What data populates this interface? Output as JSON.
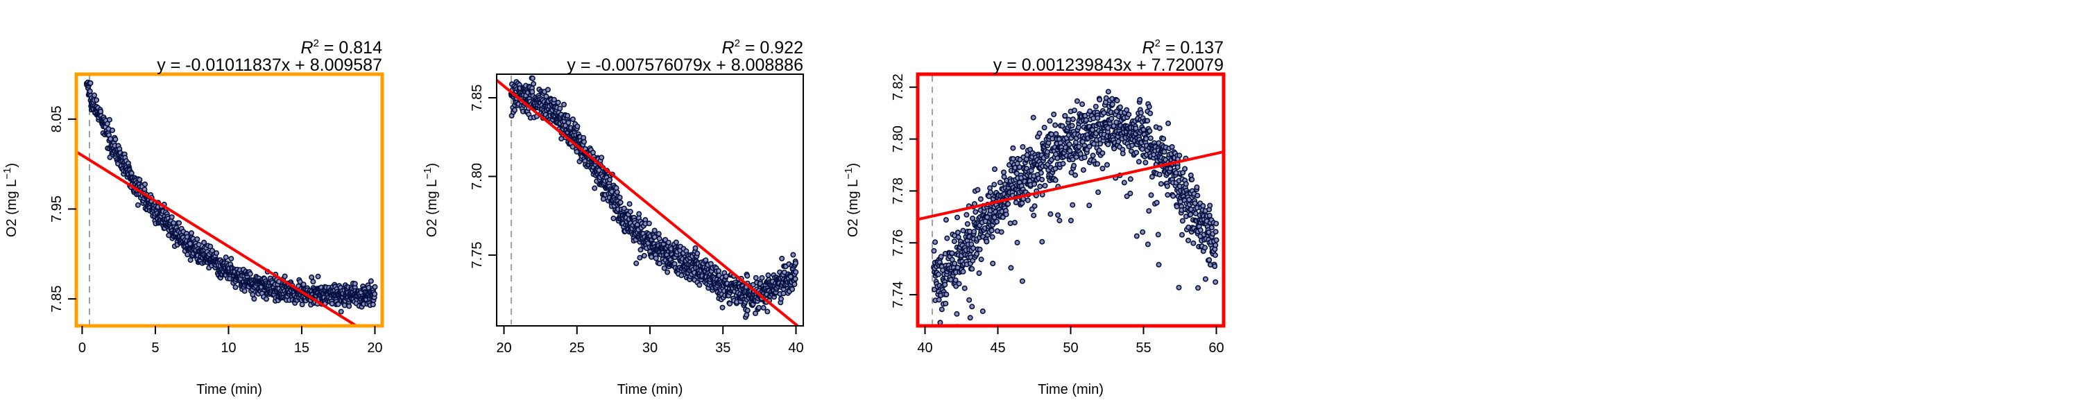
{
  "chart_data": [
    {
      "type": "scatter",
      "xlabel": "Time (min)",
      "ylabel_main": "O2 (mg L",
      "ylabel_sup": "−1",
      "ylabel_close": ")",
      "r2_label": "R",
      "r2_sup": "2",
      "r2_value": " = 0.814",
      "equation": "y = -0.01011837x + 8.009587",
      "xlim": [
        -0.4,
        20.5
      ],
      "ylim": [
        7.82,
        8.1
      ],
      "x_ticks": [
        0,
        5,
        10,
        15,
        20
      ],
      "y_ticks": [
        7.85,
        7.95,
        8.05
      ],
      "x_tick_labels": [
        "0",
        "5",
        "10",
        "15",
        "20"
      ],
      "y_tick_labels": [
        "7.85",
        "7.95",
        "8.05"
      ],
      "fit": {
        "slope": -0.01011837,
        "intercept": 8.009587
      },
      "subset_start": 0.5,
      "frame_color": "#ff9e00",
      "point_color": "#001040",
      "fit_color": "#ff0000",
      "curve": [
        [
          0.3,
          8.09
        ],
        [
          1,
          8.06
        ],
        [
          2,
          8.025
        ],
        [
          3,
          7.995
        ],
        [
          4,
          7.97
        ],
        [
          5,
          7.948
        ],
        [
          6,
          7.93
        ],
        [
          7,
          7.915
        ],
        [
          8,
          7.902
        ],
        [
          9,
          7.89
        ],
        [
          10,
          7.88
        ],
        [
          11,
          7.872
        ],
        [
          12,
          7.866
        ],
        [
          13,
          7.861
        ],
        [
          15,
          7.857
        ],
        [
          17,
          7.855
        ],
        [
          20,
          7.852
        ]
      ],
      "noise": 0.006
    },
    {
      "type": "scatter",
      "xlabel": "Time (min)",
      "ylabel_main": "O2 (mg L",
      "ylabel_sup": "−1",
      "ylabel_close": ")",
      "r2_label": "R",
      "r2_sup": "2",
      "r2_value": " = 0.922",
      "equation": "y = -0.007576079x + 8.008886",
      "xlim": [
        19.5,
        40.5
      ],
      "ylim": [
        7.705,
        7.865
      ],
      "x_ticks": [
        20,
        25,
        30,
        35,
        40
      ],
      "y_ticks": [
        7.75,
        7.8,
        7.85
      ],
      "x_tick_labels": [
        "20",
        "25",
        "30",
        "35",
        "40"
      ],
      "y_tick_labels": [
        "7.75",
        "7.80",
        "7.85"
      ],
      "fit": {
        "slope": -0.007576079,
        "intercept": 8.008886
      },
      "subset_start": 20.5,
      "frame_color": "#000000",
      "point_color": "#001040",
      "fit_color": "#ff0000",
      "curve": [
        [
          20.5,
          7.852
        ],
        [
          22,
          7.851
        ],
        [
          23,
          7.845
        ],
        [
          24,
          7.835
        ],
        [
          25,
          7.823
        ],
        [
          26,
          7.81
        ],
        [
          27,
          7.795
        ],
        [
          28,
          7.778
        ],
        [
          29,
          7.765
        ],
        [
          30,
          7.758
        ],
        [
          31,
          7.752
        ],
        [
          32,
          7.747
        ],
        [
          33,
          7.743
        ],
        [
          34,
          7.737
        ],
        [
          35,
          7.731
        ],
        [
          36,
          7.726
        ],
        [
          37,
          7.724
        ],
        [
          38,
          7.726
        ],
        [
          39,
          7.733
        ],
        [
          40,
          7.738
        ]
      ],
      "noise": 0.005
    },
    {
      "type": "scatter",
      "xlabel": "Time (min)",
      "ylabel_main": "O2 (mg L",
      "ylabel_sup": "−1",
      "ylabel_close": ")",
      "r2_label": "R",
      "r2_sup": "2",
      "r2_value": " = 0.137",
      "equation": "y = 0.001239843x + 7.720079",
      "xlim": [
        39.5,
        60.5
      ],
      "ylim": [
        7.728,
        7.825
      ],
      "x_ticks": [
        40,
        45,
        50,
        55,
        60
      ],
      "y_ticks": [
        7.74,
        7.76,
        7.78,
        7.8,
        7.82
      ],
      "x_tick_labels": [
        "40",
        "45",
        "50",
        "55",
        "60"
      ],
      "y_tick_labels": [
        "7.74",
        "7.76",
        "7.78",
        "7.80",
        "7.82"
      ],
      "fit": {
        "slope": 0.001239843,
        "intercept": 7.720079
      },
      "subset_start": 40.5,
      "frame_color": "#ff0000",
      "point_color": "#001040",
      "fit_color": "#ff0000",
      "curve": [
        [
          40.6,
          7.748
        ],
        [
          41,
          7.745
        ],
        [
          42,
          7.752
        ],
        [
          43,
          7.758
        ],
        [
          44,
          7.766
        ],
        [
          45,
          7.774
        ],
        [
          46,
          7.781
        ],
        [
          47,
          7.787
        ],
        [
          48,
          7.792
        ],
        [
          49,
          7.796
        ],
        [
          50,
          7.8
        ],
        [
          51,
          7.802
        ],
        [
          52,
          7.804
        ],
        [
          53,
          7.806
        ],
        [
          54,
          7.804
        ],
        [
          55,
          7.802
        ],
        [
          56,
          7.795
        ],
        [
          57,
          7.787
        ],
        [
          58,
          7.778
        ],
        [
          59,
          7.767
        ],
        [
          60,
          7.757
        ]
      ],
      "noise": 0.006
    }
  ]
}
